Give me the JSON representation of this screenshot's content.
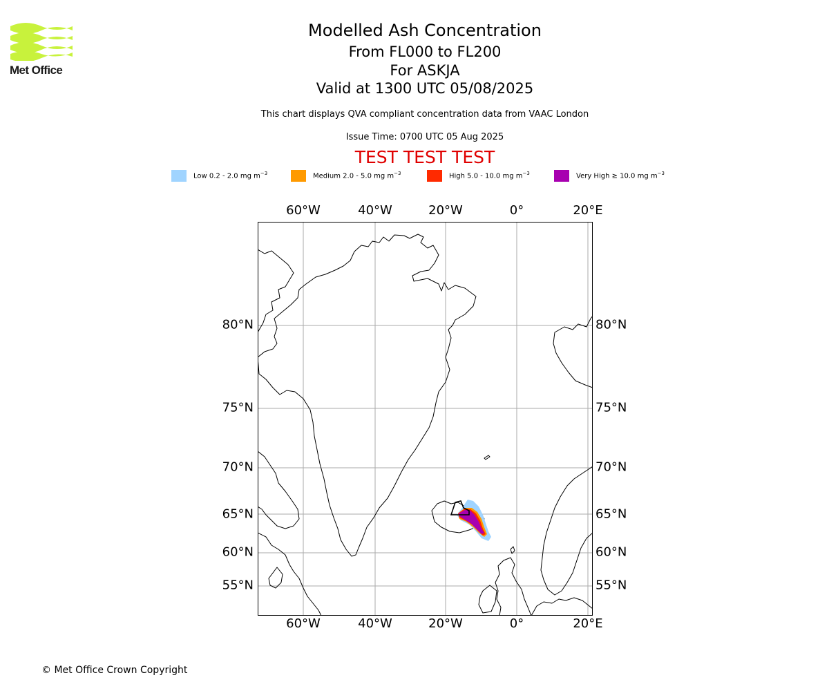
{
  "logo": {
    "text": "Met Office",
    "icon": "met-office-wave-logo",
    "color": "#c8f23c"
  },
  "header": {
    "title": "Modelled Ash Concentration",
    "flight_levels": "From FL000 to FL200",
    "volcano": "For ASKJA",
    "valid_time": "Valid at 1300 UTC 05/08/2025",
    "description": "This chart displays QVA compliant concentration data from VAAC London",
    "issue_time": "Issue Time: 0700 UTC 05 Aug 2025",
    "test_banner": "TEST TEST TEST",
    "test_color": "#e00000"
  },
  "legend": [
    {
      "label": "Low 0.2 - 2.0 mg m",
      "color": "#a0d4ff"
    },
    {
      "label": "Medium 2.0 - 5.0 mg m",
      "color": "#ff9a00"
    },
    {
      "label": "High 5.0 - 10.0 mg m",
      "color": "#ff2a00"
    },
    {
      "label": "Very High  ≥  10.0 mg m",
      "color": "#a800b0"
    }
  ],
  "legend_unit_exponent": "−3",
  "map": {
    "longitude_ticks": [
      "60°W",
      "40°W",
      "20°W",
      "0°",
      "20°E"
    ],
    "latitude_ticks": [
      "80°N",
      "75°N",
      "70°N",
      "65°N",
      "60°N",
      "55°N"
    ],
    "gridlines": true,
    "coastline_color": "#000000",
    "grid_color": "#aaaaaa"
  },
  "footer": {
    "copyright": "© Met Office Crown Copyright"
  }
}
